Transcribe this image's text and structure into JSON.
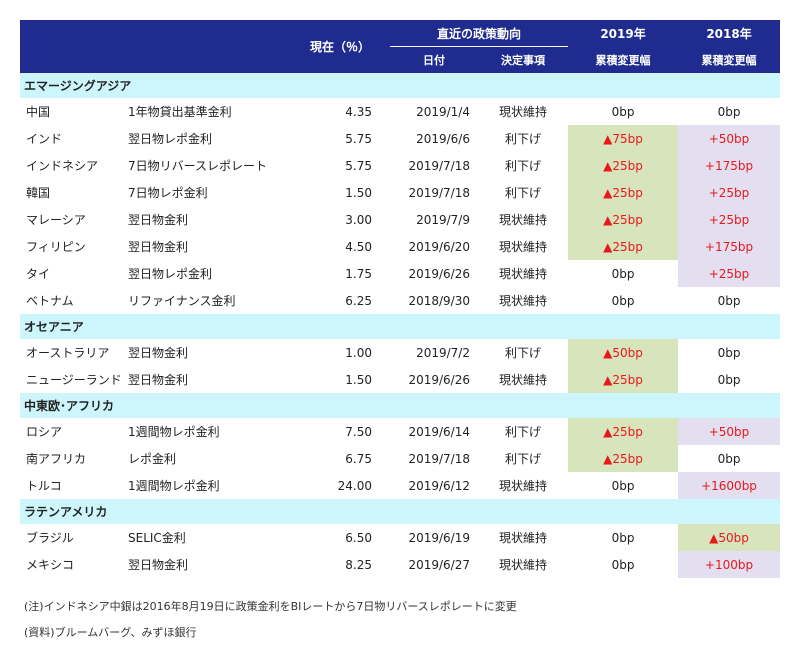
{
  "header": {
    "current": "現在（％）",
    "policy_trend": "直近の政策動向",
    "date": "日付",
    "decision": "決定事項",
    "y2019_year": "2019年",
    "y2019_sub": "累積変更幅",
    "y2018_year": "2018年",
    "y2018_sub": "累積変更幅"
  },
  "regions": [
    {
      "name": "エマージングアジア",
      "rows": [
        {
          "country": "中国",
          "rate_type": "1年物貸出基準金利",
          "rate": "4.35",
          "date": "2019/1/4",
          "decision": "現状維持",
          "chg2019": "0bp",
          "chg2019_hl": "",
          "chg2018": "0bp",
          "chg2018_hl": ""
        },
        {
          "country": "インド",
          "rate_type": "翌日物レポ金利",
          "rate": "5.75",
          "date": "2019/6/6",
          "decision": "利下げ",
          "chg2019": "▲75bp",
          "chg2019_hl": "green",
          "chg2018": "+50bp",
          "chg2018_hl": "lav"
        },
        {
          "country": "インドネシア",
          "rate_type": "7日物リバースレポレート",
          "rate": "5.75",
          "date": "2019/7/18",
          "decision": "利下げ",
          "chg2019": "▲25bp",
          "chg2019_hl": "green",
          "chg2018": "+175bp",
          "chg2018_hl": "lav"
        },
        {
          "country": "韓国",
          "rate_type": "7日物レポ金利",
          "rate": "1.50",
          "date": "2019/7/18",
          "decision": "利下げ",
          "chg2019": "▲25bp",
          "chg2019_hl": "green",
          "chg2018": "+25bp",
          "chg2018_hl": "lav"
        },
        {
          "country": "マレーシア",
          "rate_type": "翌日物金利",
          "rate": "3.00",
          "date": "2019/7/9",
          "decision": "現状維持",
          "chg2019": "▲25bp",
          "chg2019_hl": "green",
          "chg2018": "+25bp",
          "chg2018_hl": "lav"
        },
        {
          "country": "フィリピン",
          "rate_type": "翌日物金利",
          "rate": "4.50",
          "date": "2019/6/20",
          "decision": "現状維持",
          "chg2019": "▲25bp",
          "chg2019_hl": "green",
          "chg2018": "+175bp",
          "chg2018_hl": "lav"
        },
        {
          "country": "タイ",
          "rate_type": "翌日物レポ金利",
          "rate": "1.75",
          "date": "2019/6/26",
          "decision": "現状維持",
          "chg2019": "0bp",
          "chg2019_hl": "",
          "chg2018": "+25bp",
          "chg2018_hl": "lav"
        },
        {
          "country": "ベトナム",
          "rate_type": "リファイナンス金利",
          "rate": "6.25",
          "date": "2018/9/30",
          "decision": "現状維持",
          "chg2019": "0bp",
          "chg2019_hl": "",
          "chg2018": "0bp",
          "chg2018_hl": ""
        }
      ]
    },
    {
      "name": "オセアニア",
      "rows": [
        {
          "country": "オーストラリア",
          "rate_type": "翌日物金利",
          "rate": "1.00",
          "date": "2019/7/2",
          "decision": "利下げ",
          "chg2019": "▲50bp",
          "chg2019_hl": "green",
          "chg2018": "0bp",
          "chg2018_hl": ""
        },
        {
          "country": "ニュージーランド",
          "rate_type": "翌日物金利",
          "rate": "1.50",
          "date": "2019/6/26",
          "decision": "現状維持",
          "chg2019": "▲25bp",
          "chg2019_hl": "green",
          "chg2018": "0bp",
          "chg2018_hl": ""
        }
      ]
    },
    {
      "name": "中東欧･アフリカ",
      "rows": [
        {
          "country": "ロシア",
          "rate_type": "1週間物レポ金利",
          "rate": "7.50",
          "date": "2019/6/14",
          "decision": "利下げ",
          "chg2019": "▲25bp",
          "chg2019_hl": "green",
          "chg2018": "+50bp",
          "chg2018_hl": "lav"
        },
        {
          "country": "南アフリカ",
          "rate_type": "レポ金利",
          "rate": "6.75",
          "date": "2019/7/18",
          "decision": "利下げ",
          "chg2019": "▲25bp",
          "chg2019_hl": "green",
          "chg2018": "0bp",
          "chg2018_hl": ""
        },
        {
          "country": "トルコ",
          "rate_type": "1週間物レポ金利",
          "rate": "24.00",
          "date": "2019/6/12",
          "decision": "現状維持",
          "chg2019": "0bp",
          "chg2019_hl": "",
          "chg2018": "+1600bp",
          "chg2018_hl": "lav"
        }
      ]
    },
    {
      "name": "ラテンアメリカ",
      "rows": [
        {
          "country": "ブラジル",
          "rate_type": "SELIC金利",
          "rate": "6.50",
          "date": "2019/6/19",
          "decision": "現状維持",
          "chg2019": "0bp",
          "chg2019_hl": "",
          "chg2018": "▲50bp",
          "chg2018_hl": "green"
        },
        {
          "country": "メキシコ",
          "rate_type": "翌日物金利",
          "rate": "8.25",
          "date": "2019/6/27",
          "decision": "現状維持",
          "chg2019": "0bp",
          "chg2019_hl": "",
          "chg2018": "+100bp",
          "chg2018_hl": "lav"
        }
      ]
    }
  ],
  "notes": {
    "note": "(注)インドネシア中銀は2016年8月19日に政策金利をBIレートから7日物リバースレポレートに変更",
    "source": "(資料)ブルームバーグ、みずほ銀行"
  }
}
